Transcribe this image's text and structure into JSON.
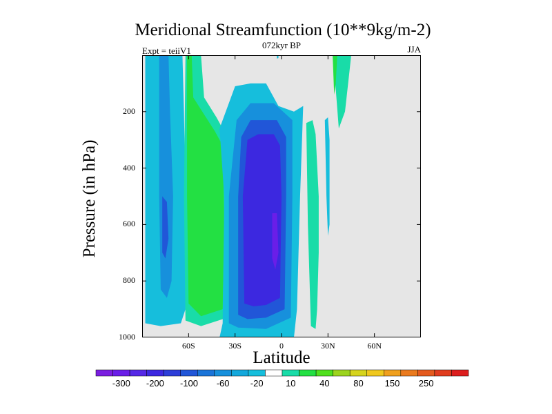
{
  "chart_data": {
    "type": "heatmap",
    "title": "Meridional Streamfunction (10**9kg/m-2)",
    "subtitle": "072kyr BP",
    "left_label": "Expt = teiiV1",
    "right_label": "JJA",
    "xlabel": "Latitude",
    "ylabel": "Pressure (in hPa)",
    "xlim": [
      -90,
      90
    ],
    "ylim": [
      1000,
      0
    ],
    "xticks": [
      {
        "value": -60,
        "label": "60S"
      },
      {
        "value": -30,
        "label": "30S"
      },
      {
        "value": 0,
        "label": "0"
      },
      {
        "value": 30,
        "label": "30N"
      },
      {
        "value": 60,
        "label": "60N"
      }
    ],
    "yticks": [
      {
        "value": 200,
        "label": "200"
      },
      {
        "value": 400,
        "label": "400"
      },
      {
        "value": 600,
        "label": "600"
      },
      {
        "value": 800,
        "label": "800"
      },
      {
        "value": 1000,
        "label": "1000"
      }
    ],
    "missing_color": "#e6e6e6",
    "colorbar": {
      "colors": [
        "#7a1ee0",
        "#6a1ee8",
        "#5528e6",
        "#3c28e0",
        "#2d3ed8",
        "#2156d8",
        "#1a74d8",
        "#1790dc",
        "#13a8dc",
        "#16bedc",
        "#ffffff",
        "#19dca8",
        "#23e043",
        "#50e01e",
        "#9cd41e",
        "#d6d41e",
        "#f0c81e",
        "#f0a01e",
        "#ea7a1e",
        "#e45a1e",
        "#e03c1e",
        "#dc1e1e"
      ],
      "labels": [
        "-300",
        "-200",
        "-100",
        "-60",
        "-20",
        "10",
        "40",
        "80",
        "150",
        "250"
      ]
    },
    "regions": [
      {
        "level": -20,
        "pts": [
          [
            -88,
            0
          ],
          [
            -64,
            0
          ],
          [
            -63,
            200
          ],
          [
            -62,
            500
          ],
          [
            -62,
            900
          ],
          [
            -65,
            950
          ],
          [
            -78,
            960
          ],
          [
            -88,
            950
          ]
        ]
      },
      {
        "level": -60,
        "pts": [
          [
            -79,
            0
          ],
          [
            -73,
            0
          ],
          [
            -72,
            200
          ],
          [
            -70,
            500
          ],
          [
            -71,
            800
          ],
          [
            -74,
            860
          ],
          [
            -78,
            830
          ],
          [
            -79,
            500
          ]
        ]
      },
      {
        "level": -100,
        "pts": [
          [
            -77,
            500
          ],
          [
            -74,
            520
          ],
          [
            -73,
            650
          ],
          [
            -75,
            720
          ],
          [
            -77,
            700
          ]
        ]
      },
      {
        "level": 10,
        "pts": [
          [
            -62,
            0
          ],
          [
            -52,
            0
          ],
          [
            -50,
            150
          ],
          [
            -42,
            220
          ],
          [
            -36,
            280
          ],
          [
            -35,
            600
          ],
          [
            -35,
            930
          ],
          [
            -52,
            960
          ],
          [
            -62,
            940
          ],
          [
            -63,
            500
          ]
        ]
      },
      {
        "level": 40,
        "pts": [
          [
            -61,
            0
          ],
          [
            -58,
            0
          ],
          [
            -57,
            150
          ],
          [
            -50,
            210
          ],
          [
            -43,
            270
          ],
          [
            -38,
            320
          ],
          [
            -37,
            600
          ],
          [
            -38,
            900
          ],
          [
            -52,
            925
          ],
          [
            -60,
            880
          ],
          [
            -61,
            500
          ]
        ]
      },
      {
        "level": -20,
        "pts": [
          [
            -40,
            1000
          ],
          [
            -38,
            950
          ],
          [
            -37,
            500
          ],
          [
            -40,
            260
          ],
          [
            -30,
            110
          ],
          [
            -20,
            100
          ],
          [
            -10,
            100
          ],
          [
            -2,
            180
          ],
          [
            8,
            200
          ],
          [
            14,
            180
          ],
          [
            12,
            500
          ],
          [
            10,
            900
          ],
          [
            8,
            1000
          ]
        ]
      },
      {
        "level": -60,
        "pts": [
          [
            -34,
            950
          ],
          [
            -34,
            500
          ],
          [
            -29,
            230
          ],
          [
            -20,
            170
          ],
          [
            -5,
            170
          ],
          [
            7,
            230
          ],
          [
            7,
            500
          ],
          [
            6,
            930
          ],
          [
            -10,
            970
          ],
          [
            -28,
            965
          ]
        ]
      },
      {
        "level": -100,
        "pts": [
          [
            -28,
            920
          ],
          [
            -28,
            500
          ],
          [
            -26,
            290
          ],
          [
            -20,
            230
          ],
          [
            -3,
            230
          ],
          [
            3,
            290
          ],
          [
            3,
            500
          ],
          [
            2,
            900
          ],
          [
            -10,
            930
          ],
          [
            -22,
            935
          ]
        ]
      },
      {
        "level": -200,
        "pts": [
          [
            -24,
            880
          ],
          [
            -25,
            500
          ],
          [
            -22,
            300
          ],
          [
            -15,
            280
          ],
          [
            -5,
            280
          ],
          [
            -1,
            320
          ],
          [
            0,
            500
          ],
          [
            -1,
            860
          ],
          [
            -10,
            885
          ],
          [
            -18,
            890
          ]
        ]
      },
      {
        "level": -300,
        "pts": [
          [
            -6,
            560
          ],
          [
            -3,
            560
          ],
          [
            -2,
            700
          ],
          [
            -4,
            760
          ],
          [
            -6,
            720
          ]
        ]
      },
      {
        "level": 10,
        "pts": [
          [
            16,
            240
          ],
          [
            20,
            230
          ],
          [
            22,
            280
          ],
          [
            24,
            500
          ],
          [
            24,
            700
          ],
          [
            23,
            900
          ],
          [
            22,
            970
          ],
          [
            19,
            960
          ],
          [
            17,
            600
          ]
        ]
      },
      {
        "level": -20,
        "pts": [
          [
            28,
            230
          ],
          [
            30,
            220
          ],
          [
            31,
            300
          ],
          [
            31,
            600
          ],
          [
            30,
            640
          ],
          [
            29,
            500
          ]
        ]
      },
      {
        "level": 10,
        "pts": [
          [
            33,
            0
          ],
          [
            45,
            0
          ],
          [
            44,
            50
          ],
          [
            41,
            200
          ],
          [
            37,
            260
          ],
          [
            35,
            120
          ]
        ]
      },
      {
        "level": 40,
        "pts": [
          [
            33,
            0
          ],
          [
            36,
            0
          ],
          [
            35,
            100
          ],
          [
            34,
            140
          ]
        ]
      },
      {
        "level": -20,
        "pts": [
          [
            -3,
            0
          ],
          [
            -2,
            0
          ],
          [
            -2,
            10
          ],
          [
            -3,
            12
          ]
        ]
      }
    ]
  }
}
